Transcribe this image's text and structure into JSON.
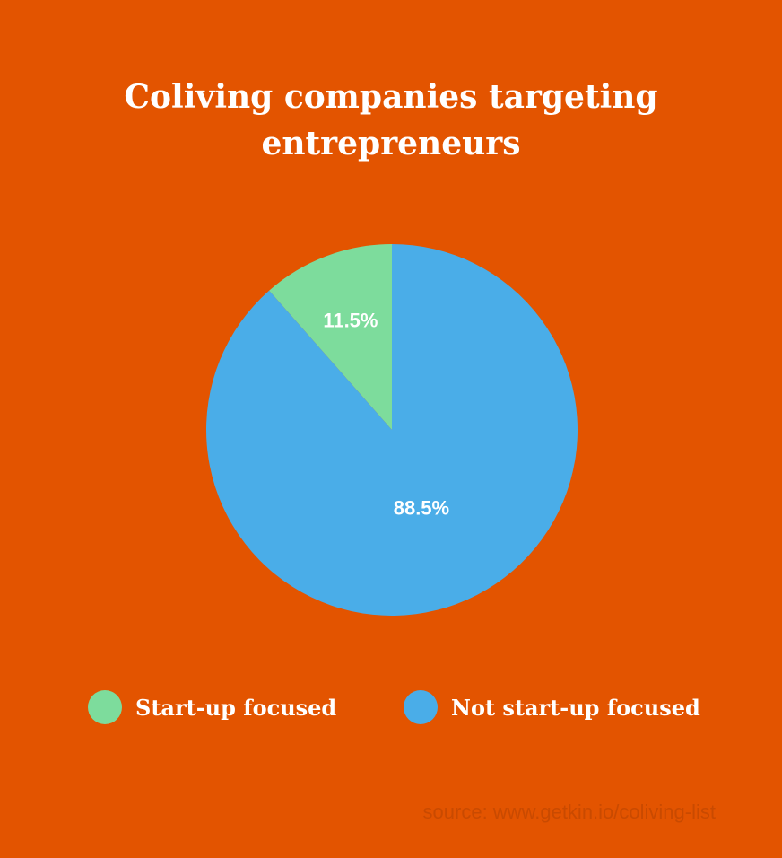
{
  "chart_data": {
    "type": "pie",
    "title_lines": [
      "Coliving companies targeting",
      "entrepreneurs"
    ],
    "slices": [
      {
        "name": "Start-up focused",
        "value": 11.5,
        "label": "11.5%",
        "color": "#7DDC9C"
      },
      {
        "name": "Not start-up focused",
        "value": 88.5,
        "label": "88.5%",
        "color": "#4AADE8"
      }
    ],
    "legend_position": "bottom",
    "source": "source: www.getkin.io/coliving-list"
  },
  "colors": {
    "background": "#E35400",
    "text": "#FFFFFF",
    "source_text": "#C94A00"
  }
}
